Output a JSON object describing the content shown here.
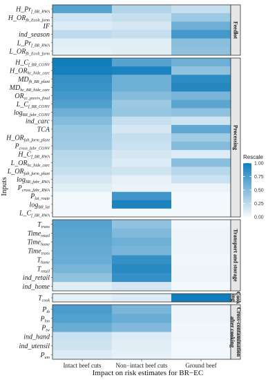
{
  "chart_data": {
    "type": "heatmap",
    "xlabel": "Impact on risk estimates for BR−EC",
    "ylabel": "Inputs",
    "columns": [
      "Intact beef cuts",
      "Non−intact beef cuts",
      "Ground beef"
    ],
    "legend": {
      "title": "Rescale",
      "ticks": [
        0.0,
        0.25,
        0.5,
        0.75,
        1.0
      ],
      "color_low": "#f7fafd",
      "color_high": "#127dbb",
      "position": "right"
    },
    "facets": [
      {
        "label": "Feedlot",
        "rows": [
          {
            "base": "H_Pr",
            "sub": "f_BR_RWA",
            "values": [
              0.7,
              0.3,
              0.22
            ]
          },
          {
            "base": "H_OR",
            "sub": "fb_Ecoli_form",
            "values": [
              0.18,
              0.22,
              0.4
            ]
          },
          {
            "base": "IF",
            "sub": "",
            "values": [
              0.12,
              0.15,
              0.6
            ]
          },
          {
            "base": "ind_season",
            "sub": "",
            "values": [
              0.25,
              0.22,
              0.78
            ]
          },
          {
            "base": "L_Pr",
            "sub": "f_BR_RWA",
            "values": [
              0.1,
              0.1,
              0.48
            ]
          },
          {
            "base": "L_OR",
            "sub": "fb_Ecoli_form",
            "values": [
              0.08,
              0.1,
              0.45
            ]
          }
        ]
      },
      {
        "label": "Processing",
        "rows": [
          {
            "base": "H_C",
            "sub": "f_BR_CONV",
            "values": [
              1.0,
              0.7,
              0.6
            ]
          },
          {
            "base": "H_OR",
            "sub": "hc_hide_carc",
            "values": [
              0.98,
              0.95,
              0.45
            ]
          },
          {
            "base": "MD",
            "sub": "fb_BR_plant",
            "values": [
              0.85,
              0.6,
              0.88
            ]
          },
          {
            "base": "MD",
            "sub": "hc_BR_hide_carc",
            "values": [
              0.82,
              0.6,
              0.92
            ]
          },
          {
            "base": "OR",
            "sub": "cc_prevrs_final",
            "values": [
              0.78,
              0.5,
              0.55
            ]
          },
          {
            "base": "L_C",
            "sub": "f_BR_CONV",
            "values": [
              0.72,
              0.4,
              0.68
            ]
          },
          {
            "base": "log",
            "sub": "BR_fabr_CONV",
            "values": [
              0.6,
              0.42,
              0.45
            ]
          },
          {
            "base": "ind_carc",
            "sub": "",
            "values": [
              0.5,
              0.22,
              0.18
            ]
          },
          {
            "base": "TCA",
            "sub": "",
            "values": [
              0.42,
              0.15,
              0.66
            ]
          },
          {
            "base": "H_OR",
            "sub": "fab_farm_plant",
            "values": [
              0.4,
              0.22,
              0.38
            ]
          },
          {
            "base": "P",
            "sub": "cross_fabr_CONV",
            "values": [
              0.38,
              0.2,
              0.5
            ]
          },
          {
            "base": "H_C",
            "sub": "f_BR_RWA",
            "values": [
              0.28,
              0.15,
              0.12
            ]
          },
          {
            "base": "L_OR",
            "sub": "hc_hide_carc",
            "values": [
              0.26,
              0.12,
              0.48
            ]
          },
          {
            "base": "L_OR",
            "sub": "fab_farm_plant",
            "values": [
              0.22,
              0.18,
              0.28
            ]
          },
          {
            "base": "log",
            "sub": "BR_fabr_RWA",
            "values": [
              0.15,
              0.08,
              0.2
            ]
          },
          {
            "base": "P",
            "sub": "cross_fabr_RWA",
            "values": [
              0.1,
              0.06,
              0.05
            ]
          },
          {
            "base": "P",
            "sub": "lat_route",
            "values": [
              0.02,
              0.8,
              0.02
            ]
          },
          {
            "base": "log",
            "sub": "BR_lat",
            "values": [
              0.02,
              0.95,
              0.02
            ]
          },
          {
            "base": "L_C",
            "sub": "f_BR_RWA",
            "values": [
              0.02,
              0.02,
              0.02
            ]
          }
        ]
      },
      {
        "label": "Transport and storage",
        "rows": [
          {
            "base": "T",
            "sub": "trans",
            "values": [
              0.7,
              0.45,
              0.03
            ]
          },
          {
            "base": "Time",
            "sub": "retail",
            "values": [
              0.68,
              0.52,
              0.04
            ]
          },
          {
            "base": "Time",
            "sub": "home",
            "values": [
              0.66,
              0.6,
              0.04
            ]
          },
          {
            "base": "Time",
            "sub": "trans",
            "values": [
              0.64,
              0.55,
              0.04
            ]
          },
          {
            "base": "T",
            "sub": "home",
            "values": [
              0.62,
              0.85,
              0.03
            ]
          },
          {
            "base": "T",
            "sub": "retail",
            "values": [
              0.55,
              0.9,
              0.04
            ]
          },
          {
            "base": "ind_retail",
            "sub": "",
            "values": [
              0.45,
              0.85,
              0.04
            ]
          },
          {
            "base": "ind_home",
            "sub": "",
            "values": [
              0.1,
              0.15,
              0.02
            ]
          }
        ]
      },
      {
        "label": "Cook ing",
        "rows": [
          {
            "base": "T",
            "sub": "cook",
            "values": [
              0.08,
              0.12,
              1.0
            ]
          }
        ]
      },
      {
        "label": "Cross-contamination after cooking",
        "rows": [
          {
            "base": "P",
            "sub": "tb",
            "values": [
              0.75,
              0.55,
              0.04
            ]
          },
          {
            "base": "P",
            "sub": "hm",
            "values": [
              0.72,
              0.62,
              0.04
            ]
          },
          {
            "base": "P",
            "sub": "tw",
            "values": [
              0.62,
              0.52,
              0.03
            ]
          },
          {
            "base": "ind_hand",
            "sub": "",
            "values": [
              0.2,
              0.12,
              0.03
            ]
          },
          {
            "base": "ind_utensil",
            "sub": "",
            "values": [
              0.18,
              0.1,
              0.02
            ]
          },
          {
            "base": "P",
            "sub": "um",
            "values": [
              0.12,
              0.08,
              0.02
            ]
          }
        ]
      }
    ]
  }
}
